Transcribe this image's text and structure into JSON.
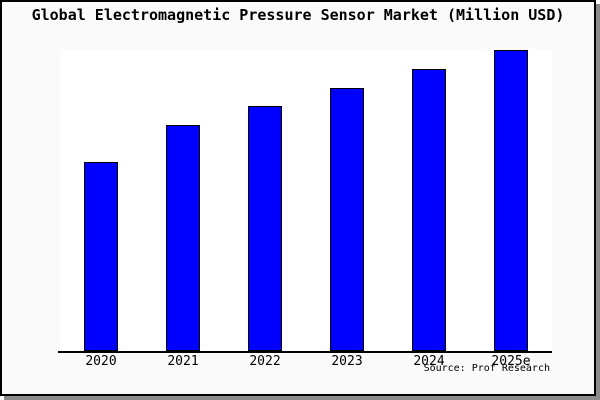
{
  "chart": {
    "title": "Global Electromagnetic Pressure Sensor Market (Million USD)",
    "source": "Source: Prof Research"
  },
  "chart_data": {
    "type": "bar",
    "title": "Global Electromagnetic Pressure Sensor Market (Million USD)",
    "categories": [
      "2020",
      "2021",
      "2022",
      "2023",
      "2024",
      "2025e"
    ],
    "values": [
      189,
      226,
      245,
      263,
      282,
      301
    ],
    "xlabel": "",
    "ylabel": "",
    "ylim": [
      0,
      302
    ],
    "y_axis_visible": false,
    "grid": false,
    "legend": false,
    "source": "Source: Prof Research",
    "colors": {
      "bar_fill": "#0000ff",
      "bar_border": "#000000",
      "plot_background": "#ffffff",
      "figure_background": "#fafafa",
      "frame_border": "#000000",
      "shadow": "#8c8c8c"
    }
  }
}
